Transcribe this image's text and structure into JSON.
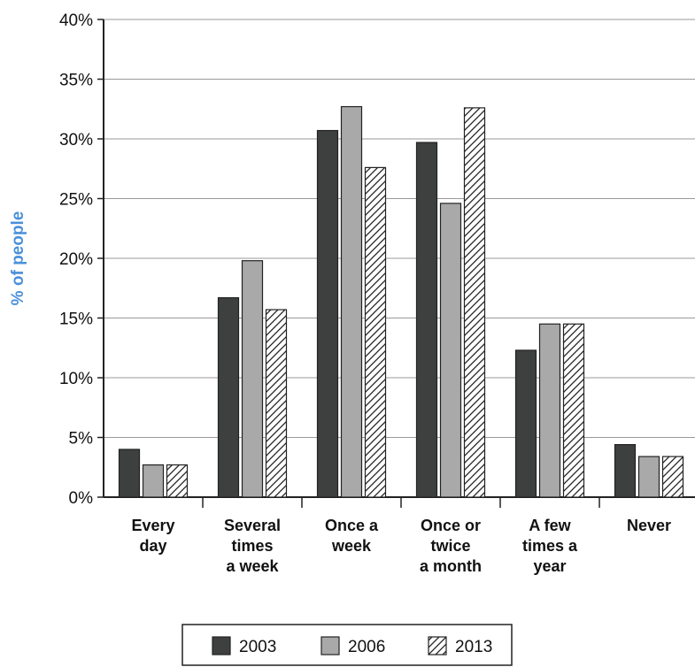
{
  "chart_data": {
    "type": "bar",
    "ylabel": "% of people",
    "xlabel": "",
    "ylim": [
      0,
      40
    ],
    "yticks": [
      0,
      5,
      10,
      15,
      20,
      25,
      30,
      35,
      40
    ],
    "ytick_labels": [
      "0%",
      "5%",
      "10%",
      "15%",
      "20%",
      "25%",
      "30%",
      "35%",
      "40%"
    ],
    "grid": "horizontal",
    "legend_position": "bottom",
    "categories": [
      [
        "Every",
        "day"
      ],
      [
        "Several",
        "times",
        "a week"
      ],
      [
        "Once a",
        "week"
      ],
      [
        "Once or",
        "twice",
        "a month"
      ],
      [
        "A few",
        "times a",
        "year"
      ],
      [
        "Never"
      ]
    ],
    "series": [
      {
        "name": "2003",
        "values": [
          4,
          16.7,
          30.7,
          29.7,
          12.3,
          4.4
        ],
        "color": "#3d403f",
        "pattern": "solid"
      },
      {
        "name": "2006",
        "values": [
          2.7,
          19.8,
          32.7,
          24.6,
          14.5,
          3.4
        ],
        "color": "#a9a9a9",
        "pattern": "solid"
      },
      {
        "name": "2013",
        "values": [
          2.7,
          15.7,
          27.6,
          32.6,
          14.5,
          3.4
        ],
        "color": "#ffffff",
        "pattern": "hatch"
      }
    ]
  }
}
